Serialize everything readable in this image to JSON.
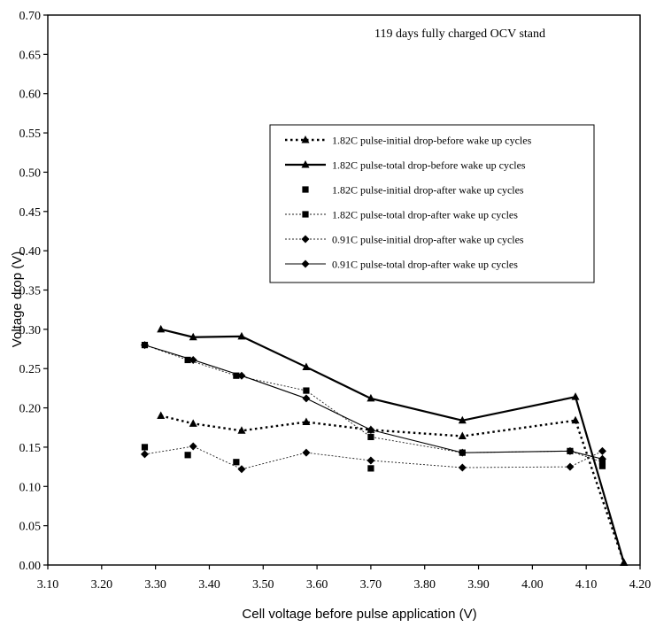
{
  "chart_data": {
    "type": "line",
    "title": "",
    "annotation": "119 days fully charged OCV stand",
    "xlabel": "Cell voltage before pulse application (V)",
    "ylabel": "Voltage drop (V)",
    "xlim": [
      3.1,
      4.2
    ],
    "ylim": [
      0.0,
      0.7
    ],
    "x_ticks": [
      "3.10",
      "3.20",
      "3.30",
      "3.40",
      "3.50",
      "3.60",
      "3.70",
      "3.80",
      "3.90",
      "4.00",
      "4.10",
      "4.20"
    ],
    "y_ticks": [
      "0.00",
      "0.05",
      "0.10",
      "0.15",
      "0.20",
      "0.25",
      "0.30",
      "0.35",
      "0.40",
      "0.45",
      "0.50",
      "0.55",
      "0.60",
      "0.65",
      "0.70"
    ],
    "grid": false,
    "legend_position": "upper-right",
    "series": [
      {
        "name": "1.82C pulse-initial drop-before wake up cycles",
        "marker": "triangle",
        "line": "dotted-bold",
        "x": [
          3.31,
          3.37,
          3.46,
          3.58,
          3.7,
          3.87,
          4.08,
          4.17
        ],
        "y": [
          0.19,
          0.18,
          0.171,
          0.182,
          0.172,
          0.164,
          0.184,
          0.003
        ]
      },
      {
        "name": "1.82C pulse-total drop-before wake up cycles",
        "marker": "triangle",
        "line": "solid-bold",
        "x": [
          3.31,
          3.37,
          3.46,
          3.58,
          3.7,
          3.87,
          4.08,
          4.17
        ],
        "y": [
          0.3,
          0.29,
          0.291,
          0.252,
          0.212,
          0.184,
          0.214,
          0.003
        ]
      },
      {
        "name": "1.82C pulse-initial drop-after wake up cycles",
        "marker": "square",
        "line": "none",
        "x": [
          3.28,
          3.36,
          3.45,
          3.7,
          4.13
        ],
        "y": [
          0.15,
          0.14,
          0.131,
          0.123,
          0.126
        ]
      },
      {
        "name": "1.82C pulse-total drop-after wake up cycles",
        "marker": "square",
        "line": "dotted-thin",
        "x": [
          3.28,
          3.36,
          3.45,
          3.58,
          3.7,
          3.87,
          4.07,
          4.13
        ],
        "y": [
          0.28,
          0.261,
          0.241,
          0.222,
          0.163,
          0.143,
          0.145,
          0.131
        ]
      },
      {
        "name": "0.91C pulse-initial drop-after wake up cycles",
        "marker": "diamond",
        "line": "dotted-thin",
        "x": [
          3.28,
          3.37,
          3.46,
          3.58,
          3.7,
          3.87,
          4.07,
          4.13
        ],
        "y": [
          0.141,
          0.151,
          0.122,
          0.143,
          0.133,
          0.124,
          0.125,
          0.145
        ]
      },
      {
        "name": "0.91C pulse-total drop-after wake up cycles",
        "marker": "diamond",
        "line": "solid-thin",
        "x": [
          3.28,
          3.37,
          3.46,
          3.58,
          3.7,
          3.87,
          4.07,
          4.13
        ],
        "y": [
          0.28,
          0.261,
          0.241,
          0.212,
          0.172,
          0.143,
          0.145,
          0.135
        ]
      }
    ]
  }
}
